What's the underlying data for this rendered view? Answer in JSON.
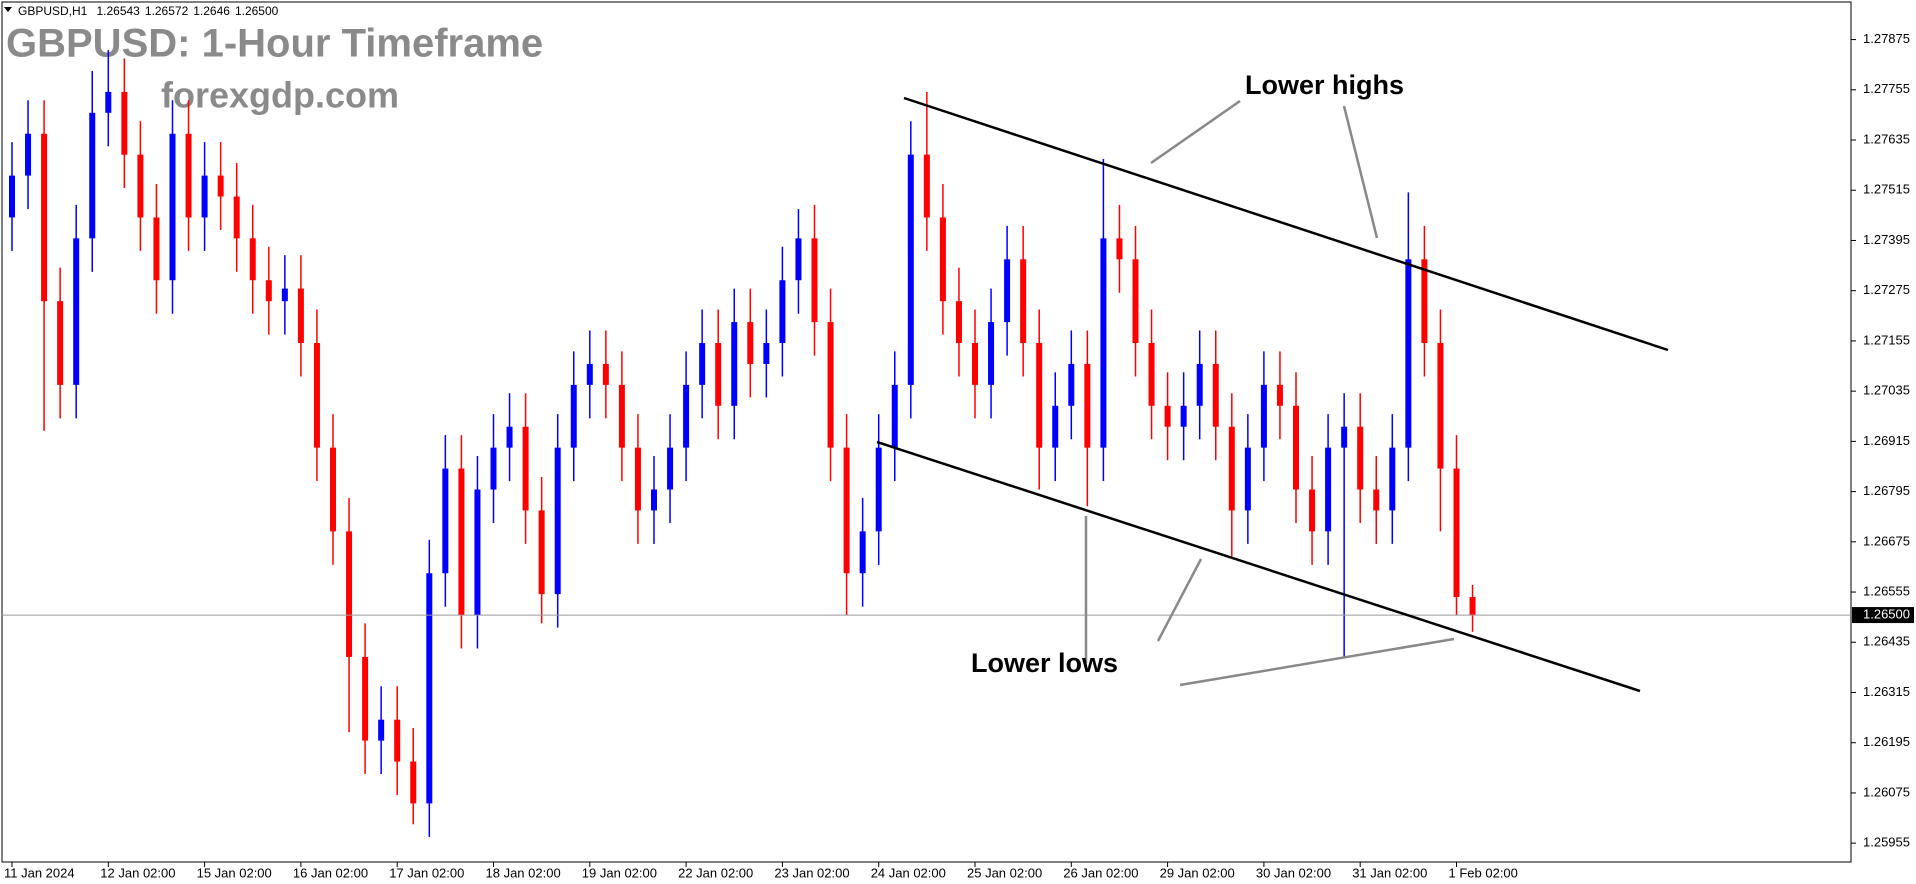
{
  "chart_data": {
    "type": "candlestick",
    "symbol": "GBPUSD,H1",
    "title": "GBPUSD: 1-Hour Timeframe",
    "subtitle": "forexgdp.com",
    "annotations": [
      "Lower highs",
      "Lower lows"
    ],
    "up_color": "#0000ff",
    "down_color": "#ff0000",
    "categories": [
      "11 Jan 2024",
      null,
      null,
      null,
      null,
      null,
      "12 Jan 02:00",
      null,
      null,
      null,
      null,
      null,
      "15 Jan 02:00",
      null,
      null,
      null,
      null,
      null,
      "16 Jan 02:00",
      null,
      null,
      null,
      null,
      null,
      "17 Jan 02:00",
      null,
      null,
      null,
      null,
      null,
      "18 Jan 02:00",
      null,
      null,
      null,
      null,
      null,
      "19 Jan 02:00",
      null,
      null,
      null,
      null,
      null,
      "22 Jan 02:00",
      null,
      null,
      null,
      null,
      null,
      "23 Jan 02:00",
      null,
      null,
      null,
      null,
      null,
      "24 Jan 02:00",
      null,
      null,
      null,
      null,
      null,
      "25 Jan 02:00",
      null,
      null,
      null,
      null,
      null,
      "26 Jan 02:00",
      null,
      null,
      null,
      null,
      null,
      "29 Jan 02:00",
      null,
      null,
      null,
      null,
      null,
      "30 Jan 02:00",
      null,
      null,
      null,
      null,
      null,
      "31 Jan 02:00",
      null,
      null,
      null,
      null,
      null,
      "1 Feb 02:00",
      null
    ],
    "open": [
      1.2745,
      1.2755,
      1.2765,
      1.2725,
      1.2705,
      1.274,
      1.277,
      1.2775,
      1.276,
      1.2745,
      1.273,
      1.2765,
      1.2745,
      1.2755,
      1.275,
      1.274,
      1.273,
      1.2725,
      1.2728,
      1.2715,
      1.269,
      1.267,
      1.264,
      1.262,
      1.2625,
      1.2615,
      1.2605,
      1.266,
      1.2685,
      1.265,
      1.268,
      1.269,
      1.2695,
      1.2675,
      1.2655,
      1.269,
      1.2705,
      1.271,
      1.2705,
      1.269,
      1.2675,
      1.268,
      1.269,
      1.2705,
      1.2715,
      1.27,
      1.272,
      1.271,
      1.2715,
      1.273,
      1.274,
      1.272,
      1.269,
      1.266,
      1.267,
      1.269,
      1.2705,
      1.276,
      1.2745,
      1.2725,
      1.2715,
      1.2705,
      1.272,
      1.2735,
      1.2715,
      1.269,
      1.27,
      1.271,
      1.269,
      1.274,
      1.2735,
      1.2715,
      1.27,
      1.2695,
      1.27,
      1.271,
      1.2695,
      1.2675,
      1.269,
      1.2705,
      1.27,
      1.268,
      1.267,
      1.269,
      1.2695,
      1.268,
      1.2675,
      1.269,
      1.2735,
      1.2715,
      1.2685,
      1.26543
    ],
    "high": [
      1.2763,
      1.2773,
      1.2773,
      1.2733,
      1.2748,
      1.278,
      1.2785,
      1.2783,
      1.2768,
      1.2753,
      1.2773,
      1.2773,
      1.2763,
      1.2763,
      1.2758,
      1.2748,
      1.2738,
      1.2736,
      1.2736,
      1.2723,
      1.2698,
      1.2678,
      1.2648,
      1.2633,
      1.2633,
      1.2623,
      1.2668,
      1.2693,
      1.2693,
      1.2688,
      1.2698,
      1.2703,
      1.2703,
      1.2683,
      1.2698,
      1.2713,
      1.2718,
      1.2718,
      1.2713,
      1.2698,
      1.2688,
      1.2698,
      1.2713,
      1.2723,
      1.2723,
      1.2728,
      1.2728,
      1.2723,
      1.2738,
      1.2747,
      1.2748,
      1.2728,
      1.2698,
      1.2678,
      1.2698,
      1.2713,
      1.2768,
      1.2775,
      1.2753,
      1.2733,
      1.2723,
      1.2728,
      1.2743,
      1.2743,
      1.2723,
      1.2708,
      1.2718,
      1.2718,
      1.2759,
      1.2748,
      1.2743,
      1.2723,
      1.2708,
      1.2708,
      1.2718,
      1.2718,
      1.2703,
      1.2698,
      1.2713,
      1.2713,
      1.2708,
      1.2688,
      1.2698,
      1.2703,
      1.2703,
      1.2688,
      1.2698,
      1.2751,
      1.2743,
      1.2723,
      1.2693,
      1.26572
    ],
    "low": [
      1.2737,
      1.2747,
      1.2694,
      1.2697,
      1.2697,
      1.2732,
      1.2762,
      1.2752,
      1.2737,
      1.2722,
      1.2722,
      1.2737,
      1.2737,
      1.2742,
      1.2732,
      1.2722,
      1.2717,
      1.2717,
      1.2707,
      1.2682,
      1.2662,
      1.2622,
      1.2612,
      1.2612,
      1.2607,
      1.26,
      1.2597,
      1.2652,
      1.2642,
      1.2642,
      1.2672,
      1.2682,
      1.2667,
      1.2648,
      1.2647,
      1.2682,
      1.2697,
      1.2697,
      1.2682,
      1.2667,
      1.2667,
      1.2672,
      1.2682,
      1.2697,
      1.2692,
      1.2692,
      1.2702,
      1.2702,
      1.2707,
      1.2722,
      1.2712,
      1.2682,
      1.265,
      1.2652,
      1.2662,
      1.2682,
      1.2697,
      1.2737,
      1.2717,
      1.2707,
      1.2697,
      1.2697,
      1.2712,
      1.2707,
      1.268,
      1.2682,
      1.2692,
      1.2676,
      1.2682,
      1.2727,
      1.2707,
      1.2692,
      1.2687,
      1.2687,
      1.2692,
      1.2687,
      1.2664,
      1.2667,
      1.2682,
      1.2692,
      1.2672,
      1.2662,
      1.2662,
      1.264,
      1.2672,
      1.2667,
      1.2667,
      1.2682,
      1.2707,
      1.267,
      1.265,
      1.2646
    ],
    "close": [
      1.2755,
      1.2765,
      1.2725,
      1.2705,
      1.274,
      1.277,
      1.2775,
      1.276,
      1.2745,
      1.273,
      1.2765,
      1.2745,
      1.2755,
      1.275,
      1.274,
      1.273,
      1.2725,
      1.2728,
      1.2715,
      1.269,
      1.267,
      1.264,
      1.262,
      1.2625,
      1.2615,
      1.2605,
      1.266,
      1.2685,
      1.265,
      1.268,
      1.269,
      1.2695,
      1.2675,
      1.2655,
      1.269,
      1.2705,
      1.271,
      1.2705,
      1.269,
      1.2675,
      1.268,
      1.269,
      1.2705,
      1.2715,
      1.27,
      1.272,
      1.271,
      1.2715,
      1.273,
      1.274,
      1.272,
      1.269,
      1.266,
      1.267,
      1.269,
      1.2705,
      1.276,
      1.2745,
      1.2725,
      1.2715,
      1.2705,
      1.272,
      1.2735,
      1.2715,
      1.269,
      1.27,
      1.271,
      1.269,
      1.274,
      1.2735,
      1.2715,
      1.27,
      1.2695,
      1.27,
      1.271,
      1.2695,
      1.2675,
      1.269,
      1.2705,
      1.27,
      1.268,
      1.267,
      1.269,
      1.2695,
      1.268,
      1.2675,
      1.269,
      1.2735,
      1.2715,
      1.2685,
      1.26543,
      1.265
    ],
    "current_price": {
      "value": 1.265,
      "label": "1.26500"
    },
    "ylim": [
      1.2591,
      1.2796
    ],
    "yticks": [
      1.27875,
      1.27755,
      1.27635,
      1.27515,
      1.27395,
      1.27275,
      1.27155,
      1.27035,
      1.26915,
      1.26795,
      1.26675,
      1.26555,
      1.26435,
      1.26315,
      1.26195,
      1.26075,
      1.25955
    ]
  }
}
